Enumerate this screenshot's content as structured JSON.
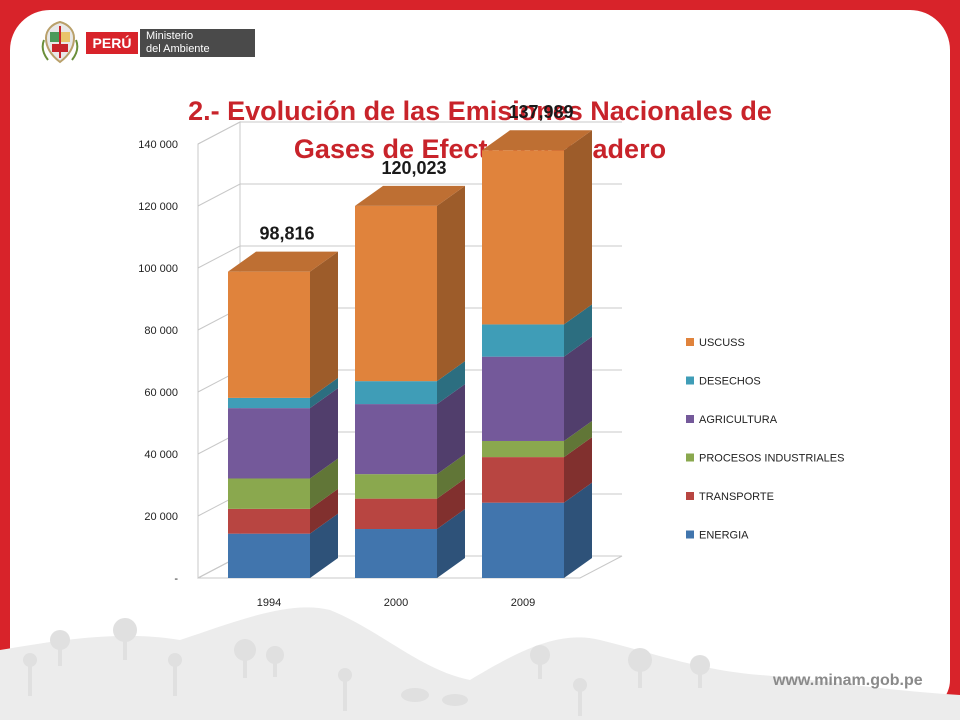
{
  "header": {
    "country": "PERÚ",
    "ministry_line1": "Ministerio",
    "ministry_line2": "del Ambiente"
  },
  "title": {
    "line1": "2.- Evolución de las Emisiones  Nacionales de",
    "line2": "Gases de Efecto Invernadero"
  },
  "footer": {
    "url": "www.minam.gob.pe"
  },
  "colors": {
    "brand_red": "#d8232a",
    "title_red": "#c8232a"
  },
  "chart_data": {
    "type": "bar",
    "stacked": true,
    "three_d": true,
    "categories": [
      "1994",
      "2000",
      "2009"
    ],
    "series": [
      {
        "name": "ENERGIA",
        "color": "#4175ad",
        "values": [
          14300,
          15800,
          24300
        ]
      },
      {
        "name": "TRANSPORTE",
        "color": "#b84541",
        "values": [
          8000,
          9800,
          14700
        ]
      },
      {
        "name": "PROCESOS INDUSTRIALES",
        "color": "#8aa84e",
        "values": [
          9800,
          7900,
          5200
        ]
      },
      {
        "name": "AGRICULTURA",
        "color": "#74599a",
        "values": [
          22700,
          22600,
          27200
        ]
      },
      {
        "name": "DESECHOS",
        "color": "#3f9db7",
        "values": [
          3300,
          7400,
          10400
        ]
      },
      {
        "name": "USCUSS",
        "color": "#e0833c",
        "values": [
          40716,
          56523,
          56189
        ]
      }
    ],
    "totals": [
      "98,816",
      "120,023",
      "137,989"
    ],
    "y_ticks": [
      "-",
      "20 000",
      "40 000",
      "60 000",
      "80 000",
      "100 000",
      "120 000",
      "140 000"
    ],
    "ylim": [
      0,
      140000
    ],
    "grid": true,
    "legend": "right"
  }
}
